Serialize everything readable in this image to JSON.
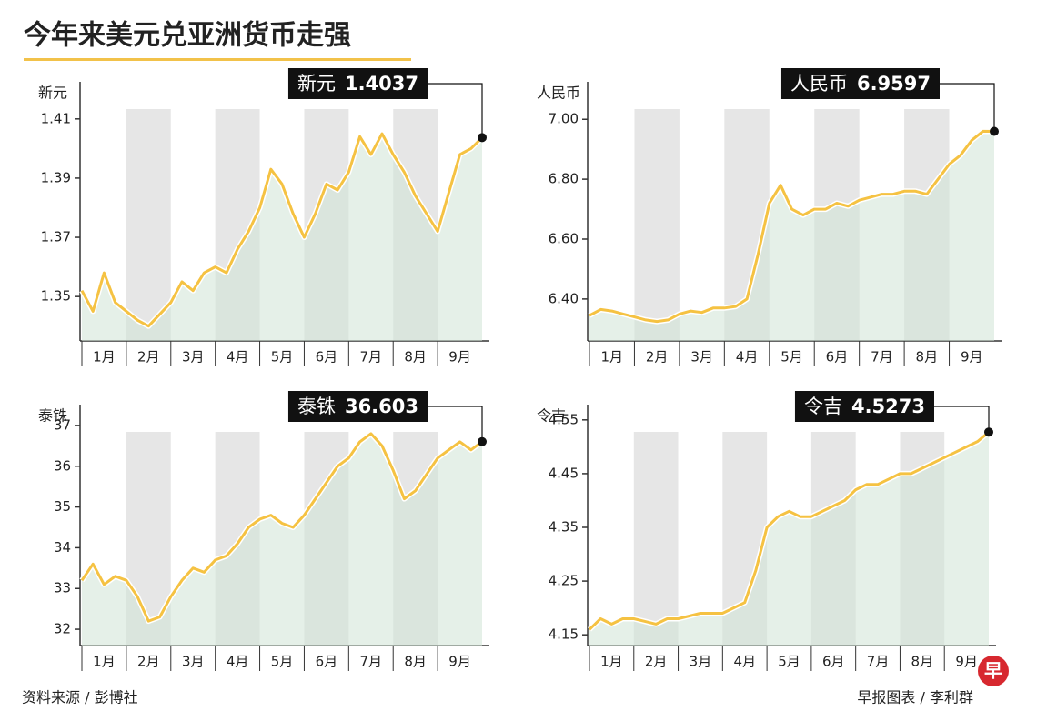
{
  "title": "今年来美元兑亚洲货币走强",
  "source": "资料来源 / 彭博社",
  "credit": "早报图表 / 李利群",
  "logo": "早",
  "chart_data": [
    {
      "type": "line",
      "ylabel": "新元",
      "xlim": [
        0,
        9
      ],
      "ylim": [
        1.335,
        1.421
      ],
      "yticks": [
        1.35,
        1.37,
        1.39,
        1.41
      ],
      "xticks": [
        {
          "value": 0.5,
          "label": "1月"
        },
        {
          "value": 1.5,
          "label": "2月"
        },
        {
          "value": 2.5,
          "label": "3月"
        },
        {
          "value": 3.5,
          "label": "4月"
        },
        {
          "value": 4.5,
          "label": "5月"
        },
        {
          "value": 5.5,
          "label": "6月"
        },
        {
          "value": 6.5,
          "label": "7月"
        },
        {
          "value": 7.5,
          "label": "8月"
        },
        {
          "value": 8.5,
          "label": "9月"
        }
      ],
      "x": [
        0,
        0.25,
        0.5,
        0.75,
        1,
        1.25,
        1.5,
        1.75,
        2,
        2.25,
        2.5,
        2.75,
        3,
        3.25,
        3.5,
        3.75,
        4,
        4.25,
        4.5,
        4.75,
        5,
        5.25,
        5.5,
        5.75,
        6,
        6.25,
        6.5,
        6.75,
        7,
        7.25,
        7.5,
        7.75,
        8,
        8.25,
        8.5,
        8.75,
        9
      ],
      "series": [
        {
          "name": "新元",
          "color": "#f5c242",
          "values": [
            1.352,
            1.345,
            1.358,
            1.348,
            1.345,
            1.342,
            1.34,
            1.344,
            1.348,
            1.355,
            1.352,
            1.358,
            1.36,
            1.358,
            1.366,
            1.372,
            1.38,
            1.393,
            1.388,
            1.378,
            1.37,
            1.378,
            1.388,
            1.386,
            1.392,
            1.404,
            1.398,
            1.405,
            1.398,
            1.392,
            1.384,
            1.378,
            1.372,
            1.385,
            1.398,
            1.4,
            1.4037
          ]
        }
      ]
    },
    {
      "type": "line",
      "ylabel": "人民币",
      "xlim": [
        0,
        9
      ],
      "ylim": [
        6.26,
        7.11
      ],
      "yticks": [
        {
          "value": 6.4,
          "label": "6.40"
        },
        {
          "value": 6.6,
          "label": "6.60"
        },
        {
          "value": 6.8,
          "label": "6.80"
        },
        {
          "value": 7,
          "label": "7.00"
        }
      ],
      "xticks": [
        {
          "value": 0.5,
          "label": "1月"
        },
        {
          "value": 1.5,
          "label": "2月"
        },
        {
          "value": 2.5,
          "label": "3月"
        },
        {
          "value": 3.5,
          "label": "4月"
        },
        {
          "value": 4.5,
          "label": "5月"
        },
        {
          "value": 5.5,
          "label": "6月"
        },
        {
          "value": 6.5,
          "label": "7月"
        },
        {
          "value": 7.5,
          "label": "8月"
        },
        {
          "value": 8.5,
          "label": "9月"
        }
      ],
      "x": [
        0,
        0.25,
        0.5,
        0.75,
        1,
        1.25,
        1.5,
        1.75,
        2,
        2.25,
        2.5,
        2.75,
        3,
        3.25,
        3.5,
        3.75,
        4,
        4.25,
        4.5,
        4.75,
        5,
        5.25,
        5.5,
        5.75,
        6,
        6.25,
        6.5,
        6.75,
        7,
        7.25,
        7.5,
        7.75,
        8,
        8.25,
        8.5,
        8.75,
        9
      ],
      "series": [
        {
          "name": "人民币",
          "color": "#f5c242",
          "values": [
            6.345,
            6.365,
            6.36,
            6.35,
            6.34,
            6.33,
            6.325,
            6.33,
            6.35,
            6.36,
            6.355,
            6.37,
            6.37,
            6.375,
            6.4,
            6.55,
            6.72,
            6.78,
            6.7,
            6.68,
            6.7,
            6.7,
            6.72,
            6.71,
            6.73,
            6.74,
            6.75,
            6.75,
            6.76,
            6.76,
            6.75,
            6.8,
            6.85,
            6.88,
            6.93,
            6.96,
            6.9597
          ]
        }
      ]
    },
    {
      "type": "line",
      "ylabel": "泰铢",
      "xlim": [
        0,
        9
      ],
      "ylim": [
        31.6,
        37.4
      ],
      "yticks": [
        32,
        33,
        34,
        35,
        36,
        37
      ],
      "xticks": [
        {
          "value": 0.5,
          "label": "1月"
        },
        {
          "value": 1.5,
          "label": "2月"
        },
        {
          "value": 2.5,
          "label": "3月"
        },
        {
          "value": 3.5,
          "label": "4月"
        },
        {
          "value": 4.5,
          "label": "5月"
        },
        {
          "value": 5.5,
          "label": "6月"
        },
        {
          "value": 6.5,
          "label": "7月"
        },
        {
          "value": 7.5,
          "label": "8月"
        },
        {
          "value": 8.5,
          "label": "9月"
        }
      ],
      "x": [
        0,
        0.25,
        0.5,
        0.75,
        1,
        1.25,
        1.5,
        1.75,
        2,
        2.25,
        2.5,
        2.75,
        3,
        3.25,
        3.5,
        3.75,
        4,
        4.25,
        4.5,
        4.75,
        5,
        5.25,
        5.5,
        5.75,
        6,
        6.25,
        6.5,
        6.75,
        7,
        7.25,
        7.5,
        7.75,
        8,
        8.25,
        8.5,
        8.75,
        9
      ],
      "series": [
        {
          "name": "泰铢",
          "color": "#f5c242",
          "values": [
            33.2,
            33.6,
            33.1,
            33.3,
            33.2,
            32.8,
            32.2,
            32.3,
            32.8,
            33.2,
            33.5,
            33.4,
            33.7,
            33.8,
            34.1,
            34.5,
            34.7,
            34.8,
            34.6,
            34.5,
            34.8,
            35.2,
            35.6,
            36.0,
            36.2,
            36.6,
            36.8,
            36.5,
            35.9,
            35.2,
            35.4,
            35.8,
            36.2,
            36.4,
            36.6,
            36.4,
            36.603
          ]
        }
      ]
    },
    {
      "type": "line",
      "ylabel": "令吉",
      "xlim": [
        0,
        9
      ],
      "ylim": [
        4.13,
        4.57
      ],
      "yticks": [
        4.15,
        4.25,
        4.35,
        4.45,
        4.55
      ],
      "xticks": [
        {
          "value": 0.5,
          "label": "1月"
        },
        {
          "value": 1.5,
          "label": "2月"
        },
        {
          "value": 2.5,
          "label": "3月"
        },
        {
          "value": 3.5,
          "label": "4月"
        },
        {
          "value": 4.5,
          "label": "5月"
        },
        {
          "value": 5.5,
          "label": "6月"
        },
        {
          "value": 6.5,
          "label": "7月"
        },
        {
          "value": 7.5,
          "label": "8月"
        },
        {
          "value": 8.5,
          "label": "9月"
        }
      ],
      "x": [
        0,
        0.25,
        0.5,
        0.75,
        1,
        1.25,
        1.5,
        1.75,
        2,
        2.25,
        2.5,
        2.75,
        3,
        3.25,
        3.5,
        3.75,
        4,
        4.25,
        4.5,
        4.75,
        5,
        5.25,
        5.5,
        5.75,
        6,
        6.25,
        6.5,
        6.75,
        7,
        7.25,
        7.5,
        7.75,
        8,
        8.25,
        8.5,
        8.75,
        9
      ],
      "series": [
        {
          "name": "令吉",
          "color": "#f5c242",
          "values": [
            4.16,
            4.18,
            4.17,
            4.18,
            4.18,
            4.175,
            4.17,
            4.18,
            4.18,
            4.185,
            4.19,
            4.19,
            4.19,
            4.2,
            4.21,
            4.27,
            4.35,
            4.37,
            4.38,
            4.37,
            4.37,
            4.38,
            4.39,
            4.4,
            4.42,
            4.43,
            4.43,
            4.44,
            4.45,
            4.45,
            4.46,
            4.47,
            4.48,
            4.49,
            4.5,
            4.51,
            4.5273
          ]
        }
      ]
    }
  ]
}
